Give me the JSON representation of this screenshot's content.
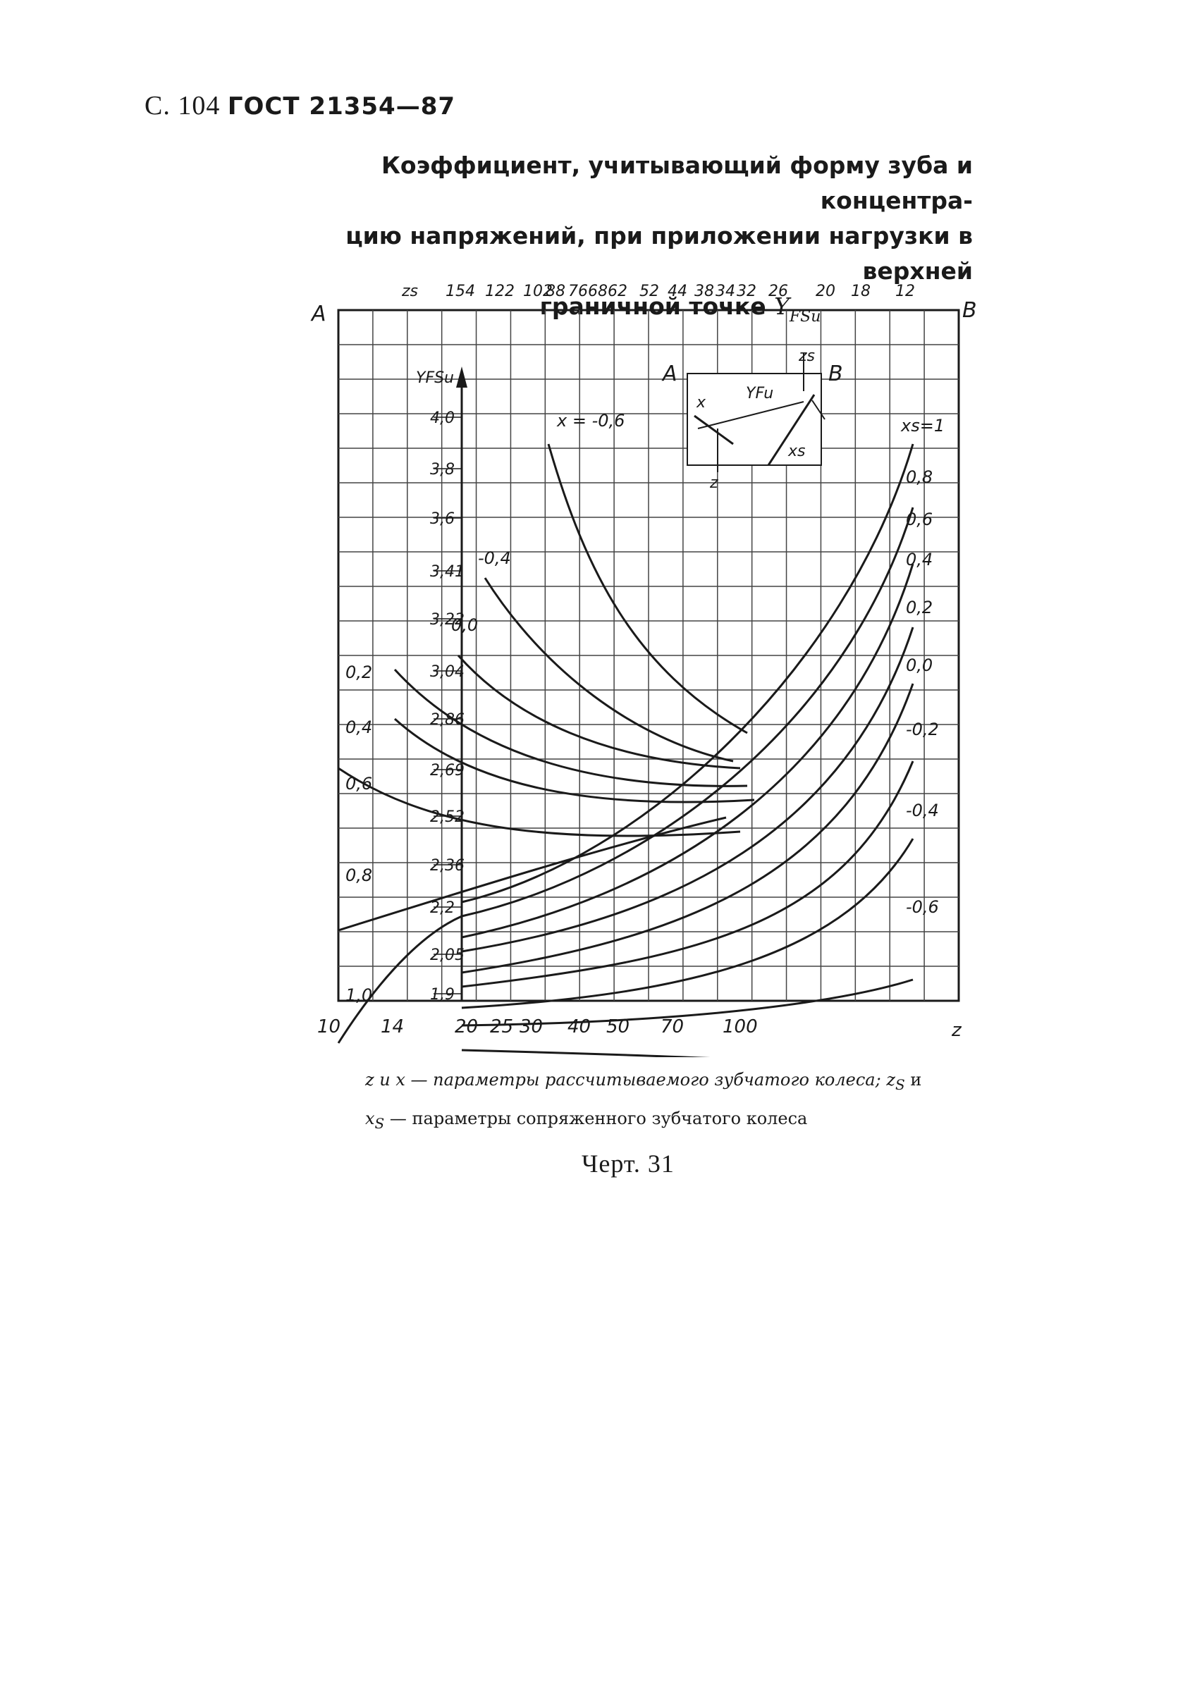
{
  "header": {
    "prefix": "С. 104",
    "standard": "ГОСТ 21354—87"
  },
  "title": {
    "line1": "Коэффициент, учитывающий форму зуба и концентра-",
    "line2": "цию напряжений, при приложении нагрузки в верхней",
    "line3": "граничной точке",
    "symbol": "Y",
    "symbol_sub": "FSu"
  },
  "chart_data": {
    "type": "line",
    "title": "",
    "xlabel": "z",
    "x_ticks": [
      "10",
      "14",
      "20",
      "25",
      "30",
      "40",
      "50",
      "70",
      "100"
    ],
    "top_axis_label": "zs",
    "top_ticks": [
      "154",
      "122",
      "102",
      "88",
      "76",
      "68",
      "62",
      "52",
      "44",
      "38",
      "34",
      "32",
      "26",
      "20",
      "18",
      "12"
    ],
    "ylabel": "YFSu",
    "y_ticks": [
      "4,0",
      "3,8",
      "3,6",
      "3,41",
      "3,22",
      "3,04",
      "2,86",
      "2,69",
      "2,52",
      "2,36",
      "2,2",
      "2,05",
      "1,9"
    ],
    "corner_left": "A",
    "corner_right": "B",
    "x_series_labels": [
      "x = -0,6",
      "-0,4",
      "0,0",
      "0,2",
      "0,4",
      "0,6",
      "0,8",
      "1,0"
    ],
    "xs_series_labels": [
      "xs=1",
      "0,8",
      "0,6",
      "0,4",
      "0,2",
      "0,0",
      "-0,2",
      "-0,4",
      "-0,6"
    ],
    "key": {
      "a": "A",
      "b": "B",
      "zs": "zs",
      "x": "x",
      "yfu": "YFu",
      "xs": "xs",
      "z": "z"
    }
  },
  "caption": {
    "part1": "z и x — параметры рассчитываемого зубчатого колеса;",
    "zs": "z",
    "zs_sub": "S",
    "and": "и",
    "xs": "x",
    "xs_sub": "S",
    "part2": "— параметры сопряженного зубчатого колеса"
  },
  "figure_number": "Черт. 31"
}
